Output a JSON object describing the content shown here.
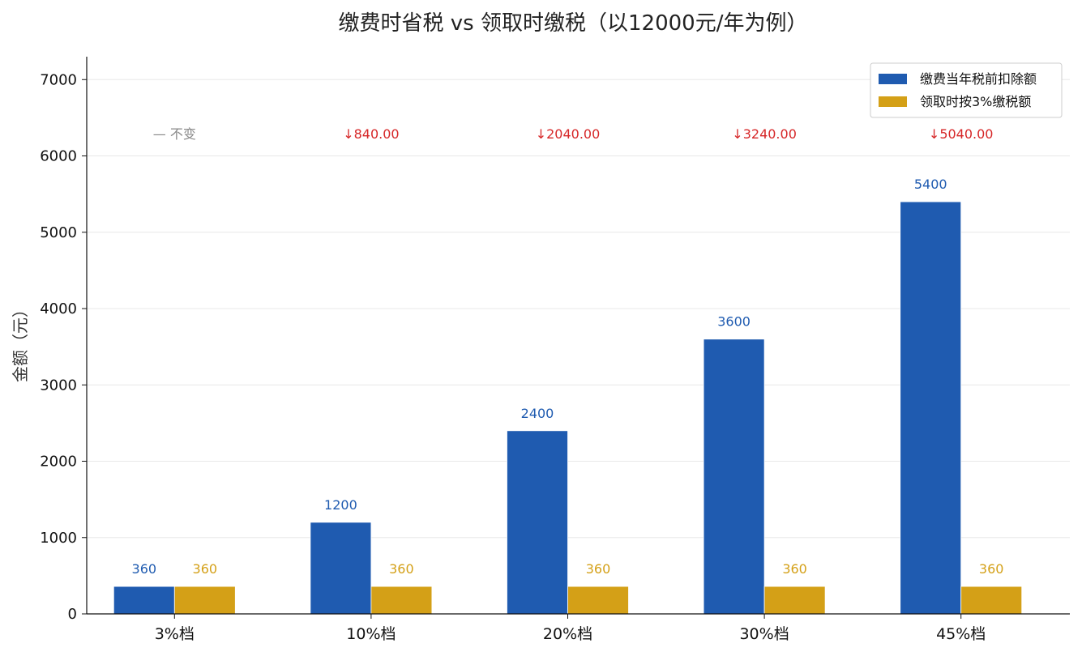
{
  "chart_data": {
    "type": "bar",
    "title": "缴费时省税 vs 领取时缴税（以12000元/年为例）",
    "xlabel": "",
    "ylabel": "金额（元）",
    "ylim": [
      0,
      7300
    ],
    "yticks": [
      0,
      1000,
      2000,
      3000,
      4000,
      5000,
      6000,
      7000
    ],
    "grid": "horizontal",
    "legend_position": "top-right",
    "categories": [
      "3%档",
      "10%档",
      "20%档",
      "30%档",
      "45%档"
    ],
    "series": [
      {
        "name": "缴费当年税前扣除额",
        "color": "#1f5bb0",
        "values": [
          360,
          1200,
          2400,
          3600,
          5400
        ],
        "labels": [
          "360",
          "1200",
          "2400",
          "3600",
          "5400"
        ]
      },
      {
        "name": "领取时按3%缴税额",
        "color": "#d4a017",
        "values": [
          360,
          360,
          360,
          360,
          360
        ],
        "labels": [
          "360",
          "360",
          "360",
          "360",
          "360"
        ]
      }
    ],
    "annotations": [
      {
        "text": "— 不变",
        "color": "#888888"
      },
      {
        "text": "↓840.00",
        "color": "#d62728"
      },
      {
        "text": "↓2040.00",
        "color": "#d62728"
      },
      {
        "text": "↓3240.00",
        "color": "#d62728"
      },
      {
        "text": "↓5040.00",
        "color": "#d62728"
      }
    ],
    "annotation_y": 6300
  }
}
